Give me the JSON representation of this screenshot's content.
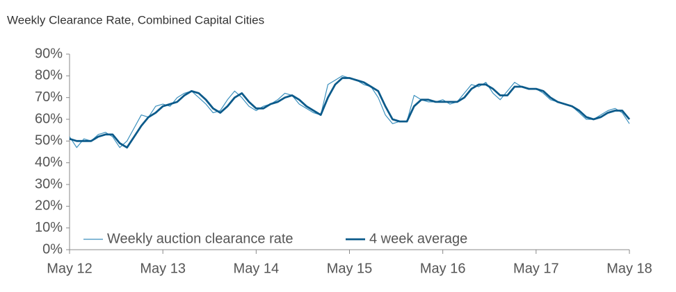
{
  "chart_data": {
    "type": "line",
    "title": "Weekly Clearance Rate, Combined Capital Cities",
    "categories": [
      "May 12",
      null,
      null,
      null,
      null,
      null,
      null,
      null,
      null,
      null,
      null,
      null,
      null,
      "May 13",
      null,
      null,
      null,
      null,
      null,
      null,
      null,
      null,
      null,
      null,
      null,
      null,
      "May 14",
      null,
      null,
      null,
      null,
      null,
      null,
      null,
      null,
      null,
      null,
      null,
      null,
      "May 15",
      null,
      null,
      null,
      null,
      null,
      null,
      null,
      null,
      null,
      null,
      null,
      null,
      "May 16",
      null,
      null,
      null,
      null,
      null,
      null,
      null,
      null,
      null,
      null,
      null,
      null,
      "May 17",
      null,
      null,
      null,
      null,
      null,
      null,
      null,
      null,
      null,
      null,
      null,
      null,
      "May 18"
    ],
    "series": [
      {
        "name": "Weekly auction clearance rate",
        "color": "#3a8fbd",
        "width": 1.2,
        "values": [
          52,
          47,
          51,
          50,
          53,
          54,
          52,
          47,
          50,
          56,
          62,
          61,
          66,
          67,
          66,
          70,
          72,
          73,
          70,
          67,
          63,
          64,
          69,
          73,
          70,
          66,
          64,
          66,
          67,
          69,
          72,
          71,
          67,
          65,
          63,
          62,
          76,
          78,
          80,
          79,
          78,
          76,
          75,
          70,
          62,
          58,
          59,
          59,
          71,
          69,
          68,
          68,
          69,
          67,
          68,
          72,
          76,
          75,
          77,
          72,
          69,
          73,
          77,
          75,
          74,
          74,
          72,
          69,
          68,
          67,
          66,
          63,
          60,
          60,
          62,
          64,
          65,
          63,
          58
        ]
      },
      {
        "name": "4 week average",
        "color": "#0b5a8a",
        "width": 2.8,
        "values": [
          51,
          50,
          50,
          50,
          52,
          53,
          53,
          49,
          47,
          52,
          57,
          61,
          63,
          66,
          67,
          68,
          71,
          73,
          72,
          69,
          65,
          63,
          66,
          70,
          72,
          68,
          65,
          65,
          67,
          68,
          70,
          71,
          69,
          66,
          64,
          62,
          70,
          76,
          79,
          79,
          78,
          77,
          75,
          73,
          66,
          60,
          59,
          59,
          66,
          69,
          69,
          68,
          68,
          68,
          68,
          70,
          74,
          76,
          76,
          74,
          71,
          71,
          75,
          75,
          74,
          74,
          73,
          70,
          68,
          67,
          66,
          64,
          61,
          60,
          61,
          63,
          64,
          64,
          60
        ]
      }
    ],
    "ylim": [
      0,
      90
    ],
    "yticks": [
      {
        "value": 0,
        "label": "0%"
      },
      {
        "value": 10,
        "label": "10%"
      },
      {
        "value": 20,
        "label": "20%"
      },
      {
        "value": 30,
        "label": "30%"
      },
      {
        "value": 40,
        "label": "40%"
      },
      {
        "value": 50,
        "label": "50%"
      },
      {
        "value": 60,
        "label": "60%"
      },
      {
        "value": 70,
        "label": "70%"
      },
      {
        "value": 80,
        "label": "80%"
      },
      {
        "value": 90,
        "label": "90%"
      }
    ],
    "legend": "bottom-left",
    "grid": false
  }
}
